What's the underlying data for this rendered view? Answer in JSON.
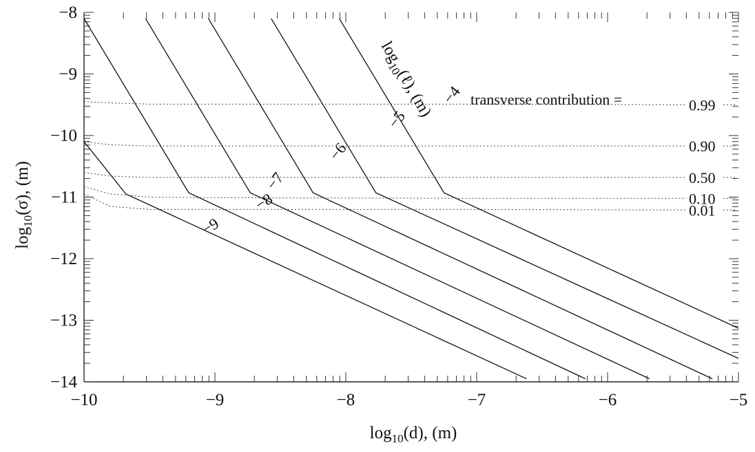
{
  "chart_data": {
    "type": "line",
    "xlabel": {
      "base": "log",
      "sub": "10",
      "rest": "(d), (m)"
    },
    "ylabel": {
      "base": "log",
      "sub": "10",
      "rest": "(σ), (m)"
    },
    "xlim": [
      -10,
      -5
    ],
    "ylim": [
      -14,
      -8
    ],
    "x_ticks": [
      "−10",
      "−9",
      "−8",
      "−7",
      "−6",
      "−5"
    ],
    "y_ticks": [
      "−8",
      "−9",
      "−10",
      "−11",
      "−12",
      "−13",
      "−14"
    ],
    "grid": false,
    "series_axis_title": {
      "base": "log",
      "sub": "10",
      "rest": "(ℓ), (m)"
    },
    "series": [
      {
        "name": "−9",
        "ell": -9,
        "x": [
          -10.0,
          -9.68,
          -6.62
        ],
        "y": [
          -10.1,
          -10.95,
          -13.95
        ]
      },
      {
        "name": "−8",
        "ell": -8,
        "x": [
          -10.0,
          -9.2,
          -6.17
        ],
        "y": [
          -8.1,
          -10.93,
          -13.95
        ]
      },
      {
        "name": "−7",
        "ell": -7,
        "x": [
          -9.53,
          -8.73,
          -5.68
        ],
        "y": [
          -8.1,
          -10.93,
          -13.95
        ]
      },
      {
        "name": "−6",
        "ell": -6,
        "x": [
          -9.05,
          -8.25,
          -5.2
        ],
        "y": [
          -8.1,
          -10.93,
          -13.95
        ]
      },
      {
        "name": "−5",
        "ell": -5,
        "x": [
          -8.57,
          -7.77,
          -5.0
        ],
        "y": [
          -8.1,
          -10.93,
          -13.62
        ]
      },
      {
        "name": "−4",
        "ell": -4,
        "x": [
          -8.05,
          -7.25,
          -5.0
        ],
        "y": [
          -8.1,
          -10.93,
          -13.13
        ]
      }
    ],
    "contours": {
      "title": "transverse contribution =",
      "levels": [
        {
          "label": "0.99",
          "y": [
            -9.45,
            -9.47,
            -9.49,
            -9.49,
            -9.49,
            -9.5
          ]
        },
        {
          "label": "0.90",
          "y": [
            -10.1,
            -10.15,
            -10.17,
            -10.17,
            -10.17,
            -10.17
          ]
        },
        {
          "label": "0.50",
          "y": [
            -10.6,
            -10.66,
            -10.68,
            -10.68,
            -10.68,
            -10.68
          ]
        },
        {
          "label": "0.10",
          "y": [
            -10.83,
            -10.95,
            -11.0,
            -11.01,
            -11.02,
            -11.02
          ]
        },
        {
          "label": "0.01",
          "y": [
            -10.95,
            -11.15,
            -11.2,
            -11.2,
            -11.2,
            -11.21
          ]
        }
      ],
      "x": [
        -10,
        -9.8,
        -9.5,
        -9.0,
        -7.0,
        -5.4
      ]
    }
  }
}
